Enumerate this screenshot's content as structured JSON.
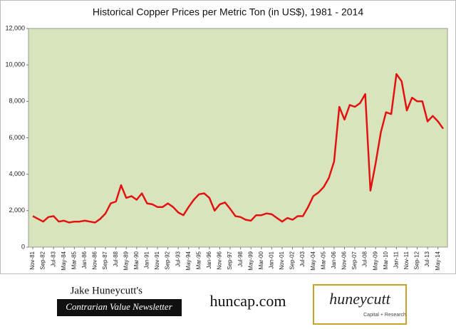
{
  "chart_data": {
    "type": "line",
    "title": "Historical Copper Prices per Metric Ton (in US$), 1981 - 2014",
    "categories": [
      "Nov-81",
      null,
      "Sep-82",
      null,
      "Jul-83",
      null,
      "May-84",
      null,
      "Mar-85",
      null,
      "Jan-86",
      null,
      "Nov-86",
      null,
      "Sep-87",
      null,
      "Jul-88",
      null,
      "May-89",
      null,
      "Mar-90",
      null,
      "Jan-91",
      null,
      "Nov-91",
      null,
      "Sep-92",
      null,
      "Jul-93",
      null,
      "May-94",
      null,
      "Mar-95",
      null,
      "Jan-96",
      null,
      "Nov-96",
      null,
      "Sep-97",
      null,
      "Jul-98",
      null,
      "May-99",
      null,
      "Mar-00",
      null,
      "Jan-01",
      null,
      "Nov-01",
      null,
      "Sep-02",
      null,
      "Jul-03",
      null,
      "May-04",
      null,
      "Mar-05",
      null,
      "Jan-06",
      null,
      "Nov-06",
      null,
      "Sep-07",
      null,
      "Jul-08",
      null,
      "May-09",
      null,
      "Mar-10",
      null,
      "Jan-11",
      null,
      "Nov-11",
      null,
      "Sep-12",
      null,
      "Jul-13",
      null,
      "May-14",
      null
    ],
    "series": [
      {
        "name": "Copper",
        "color": "#e31212",
        "values": [
          1700,
          1550,
          1400,
          1650,
          1700,
          1400,
          1450,
          1350,
          1400,
          1400,
          1450,
          1400,
          1350,
          1550,
          1850,
          2400,
          2500,
          3400,
          2700,
          2800,
          2600,
          2950,
          2400,
          2350,
          2200,
          2200,
          2400,
          2200,
          1900,
          1750,
          2200,
          2600,
          2900,
          2950,
          2700,
          2000,
          2350,
          2450,
          2100,
          1700,
          1650,
          1500,
          1450,
          1750,
          1750,
          1850,
          1800,
          1600,
          1400,
          1600,
          1500,
          1700,
          1700,
          2200,
          2800,
          3000,
          3300,
          3800,
          4700,
          7700,
          7000,
          7800,
          7700,
          7900,
          8400,
          3100,
          4600,
          6300,
          7400,
          7300,
          9500,
          9100,
          7500,
          8200,
          8000,
          8000,
          6900,
          7200,
          6900,
          6500
        ]
      }
    ],
    "ylim": [
      0,
      12000
    ],
    "yticks": [
      0,
      {
        "value": 2000,
        "label": "2,000"
      },
      {
        "value": 4000,
        "label": "4,000"
      },
      {
        "value": 6000,
        "label": "6,000"
      },
      {
        "value": 8000,
        "label": "8,000"
      },
      {
        "value": 10000,
        "label": "10,000"
      },
      {
        "value": 12000,
        "label": "12,000"
      }
    ],
    "grid": false,
    "background": "#d8e4bc"
  },
  "footer": {
    "author": "Jake Huneycutt's",
    "newsletter": "Contrarian Value Newsletter",
    "site": "huncap.com",
    "logo": "huneycutt",
    "logo_sub": "Capital + Research"
  }
}
